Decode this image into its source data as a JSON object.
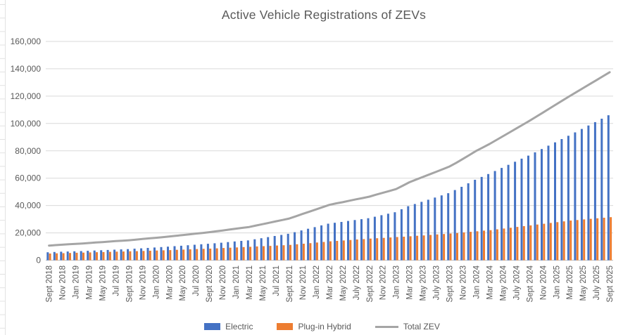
{
  "title": "Active Vehicle Registrations of ZEVs",
  "colors": {
    "electric": "#4472C4",
    "plug_in_hybrid": "#ED7D31",
    "total_zev": "#A5A5A5",
    "gridline": "#D9D9D9",
    "axis_line": "#BFBFBF",
    "axis_text": "#595959",
    "worksheet_edge": "#E2E2E2"
  },
  "chart_data": {
    "type": "bar",
    "subtype": "clustered-bars-with-line-overlay",
    "title": "Active Vehicle Registrations of ZEVs",
    "xlabel": "",
    "ylabel": "",
    "n_points": 85,
    "x_tick_every_n_months": 2,
    "x_tick_labels": [
      "Sept 2018",
      "Nov 2018",
      "Jan 2019",
      "Mar 2019",
      "May 2019",
      "Jul 2019",
      "Sept 2019",
      "Nov 2019",
      "Jan 2020",
      "Mar 2020",
      "May 2020",
      "Jul 2020",
      "Sept 2020",
      "Nov 2020",
      "Jan 2021",
      "Mar 2021",
      "May 2021",
      "Jul 2021",
      "Sept 2021",
      "Nov 2021",
      "Jan 2022",
      "Mar 2022",
      "May 2022",
      "July 2022",
      "Sept 2022",
      "Nov 2022",
      "Jan 2023",
      "Mar 2023",
      "May 2023",
      "July 2023",
      "Sept 2023",
      "Nov 2023",
      "Jan 2024",
      "Mar 2024",
      "May 2024",
      "July 2024",
      "Sept 2024",
      "Nov 2024",
      "Jan 2025",
      "Mar 2025",
      "May 2025",
      "July 2025",
      "Sept 2025"
    ],
    "ylim": [
      0,
      160000
    ],
    "ytick_step": 20000,
    "y_tick_labels": [
      "0",
      "20,000",
      "40,000",
      "60,000",
      "80,000",
      "100,000",
      "120,000",
      "140,000",
      "160,000"
    ],
    "grid": true,
    "legend_position": "bottom",
    "series": [
      {
        "name": "Electric",
        "type": "bar",
        "color": "#4472C4",
        "values": [
          5800,
          6000,
          6200,
          6350,
          6500,
          6700,
          6900,
          7100,
          7300,
          7500,
          7700,
          7900,
          8100,
          8400,
          8700,
          9000,
          9300,
          9600,
          9900,
          10250,
          10600,
          10950,
          11300,
          11650,
          12000,
          12400,
          12800,
          13250,
          13700,
          14100,
          14500,
          15300,
          16100,
          16900,
          17700,
          18500,
          19300,
          20500,
          21800,
          23000,
          24200,
          25500,
          26700,
          27400,
          28000,
          28700,
          29400,
          30000,
          30700,
          31800,
          32900,
          34000,
          35100,
          37300,
          39500,
          41100,
          42700,
          44250,
          45800,
          47400,
          49000,
          51300,
          53700,
          56250,
          58800,
          60900,
          63000,
          65250,
          67500,
          69750,
          72000,
          74250,
          76500,
          78900,
          81300,
          83750,
          86200,
          88600,
          91000,
          93500,
          96000,
          98500,
          101000,
          103500,
          106000
        ]
      },
      {
        "name": "Plug-in Hybrid",
        "type": "bar",
        "color": "#ED7D31",
        "values": [
          4900,
          5050,
          5150,
          5300,
          5450,
          5550,
          5700,
          5850,
          5950,
          6100,
          6250,
          6350,
          6500,
          6650,
          6800,
          6950,
          7100,
          7250,
          7400,
          7600,
          7750,
          7950,
          8150,
          8300,
          8500,
          8700,
          8950,
          9150,
          9350,
          9600,
          9800,
          10050,
          10250,
          10500,
          10750,
          10950,
          11200,
          11650,
          12050,
          12500,
          12950,
          13350,
          13800,
          14150,
          14450,
          14800,
          15150,
          15450,
          15800,
          16100,
          16350,
          16650,
          16950,
          17200,
          17500,
          17850,
          18150,
          18500,
          18850,
          19150,
          19500,
          19900,
          20350,
          20750,
          21150,
          21600,
          22000,
          22600,
          23150,
          23750,
          24350,
          24900,
          25500,
          26100,
          26650,
          27250,
          27850,
          28400,
          29000,
          29400,
          29850,
          30250,
          30650,
          31100,
          31500
        ]
      },
      {
        "name": "Total ZEV",
        "type": "line",
        "color": "#A5A5A5",
        "values": [
          10700,
          11050,
          11350,
          11650,
          11950,
          12250,
          12600,
          12950,
          13250,
          13600,
          13950,
          14250,
          14600,
          15050,
          15500,
          15950,
          16400,
          16850,
          17300,
          17850,
          18350,
          18900,
          19450,
          19950,
          20500,
          21100,
          21750,
          22400,
          23050,
          23700,
          24300,
          25350,
          26350,
          27400,
          28450,
          29450,
          30500,
          32150,
          33850,
          35500,
          37150,
          38850,
          40500,
          41550,
          42450,
          43500,
          44550,
          45450,
          46500,
          47900,
          49250,
          50650,
          52050,
          54500,
          57000,
          58950,
          60850,
          62750,
          64650,
          66550,
          68500,
          71200,
          74050,
          77000,
          79950,
          82500,
          85000,
          87850,
          90650,
          93500,
          96350,
          99150,
          102000,
          105000,
          107950,
          111000,
          114050,
          117000,
          120000,
          122900,
          125850,
          128750,
          131650,
          134600,
          137500
        ]
      }
    ]
  }
}
